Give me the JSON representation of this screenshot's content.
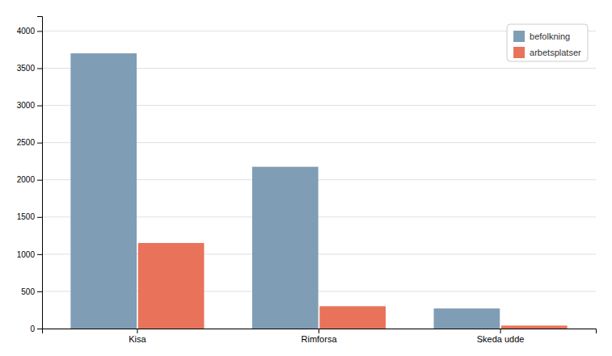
{
  "chart_data": {
    "type": "bar",
    "categories": [
      "Kisa",
      "Rimforsa",
      "Skeda udde"
    ],
    "series": [
      {
        "name": "befolkning",
        "color": "#7f9db5",
        "values": [
          3700,
          2175,
          270
        ]
      },
      {
        "name": "arbetsplatser",
        "color": "#e8735a",
        "values": [
          1150,
          300,
          40
        ]
      }
    ],
    "ylim": [
      0,
      4200
    ],
    "yticks": [
      0,
      500,
      1000,
      1500,
      2000,
      2500,
      3000,
      3500,
      4000
    ],
    "grid": true,
    "legend": "upper right"
  }
}
